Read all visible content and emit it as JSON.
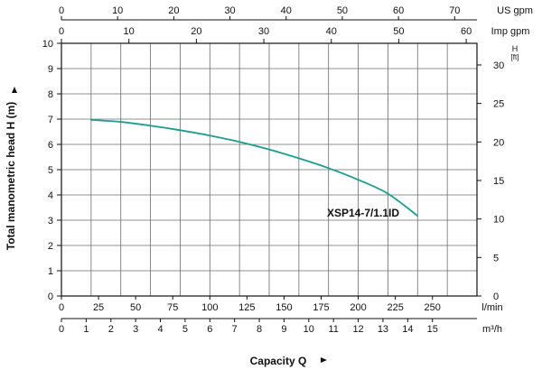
{
  "chart_data": {
    "type": "line",
    "series": [
      {
        "name": "XSP14-7/1.1ID",
        "x": [
          20,
          40,
          60,
          80,
          100,
          120,
          140,
          160,
          180,
          200,
          220,
          240
        ],
        "y": [
          6.97,
          6.89,
          6.74,
          6.56,
          6.35,
          6.1,
          5.8,
          5.45,
          5.06,
          4.6,
          4.05,
          3.17
        ],
        "color": "#1a9e8f"
      }
    ],
    "xlabel": "Capacity Q",
    "ylabel": "Total manometric head H (m)",
    "ylim": [
      0,
      10
    ],
    "xlim_lmin": [
      0,
      280
    ],
    "grid": true,
    "axes": {
      "left": {
        "unit": "",
        "ticks": [
          "0",
          "1",
          "2",
          "3",
          "4",
          "5",
          "6",
          "7",
          "8",
          "9",
          "10"
        ]
      },
      "right": {
        "unit_top": "H",
        "unit_bottom": "[ft]",
        "ticks": [
          "0",
          "5",
          "10",
          "15",
          "20",
          "25",
          "30"
        ]
      },
      "bottom_lmin": {
        "unit": "l/min",
        "ticks": [
          "0",
          "25",
          "50",
          "75",
          "100",
          "125",
          "150",
          "175",
          "200",
          "225",
          "250"
        ]
      },
      "bottom_m3h": {
        "unit": "m³/h",
        "ticks": [
          "0",
          "1",
          "2",
          "3",
          "4",
          "5",
          "6",
          "7",
          "8",
          "9",
          "10",
          "11",
          "12",
          "13",
          "14",
          "15"
        ]
      },
      "top_usgpm": {
        "unit": "US gpm",
        "ticks": [
          "0",
          "10",
          "20",
          "30",
          "40",
          "50",
          "60",
          "70"
        ]
      },
      "top_impgpm": {
        "unit": "Imp gpm",
        "ticks": [
          "0",
          "10",
          "20",
          "30",
          "40",
          "50",
          "60"
        ]
      }
    }
  }
}
